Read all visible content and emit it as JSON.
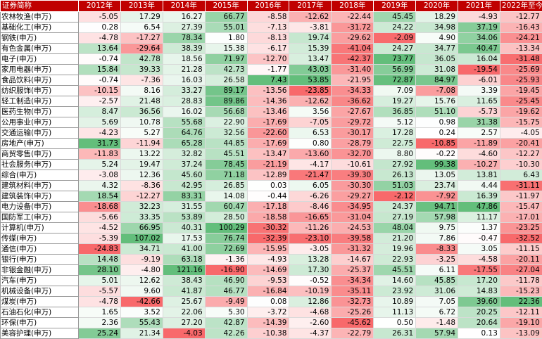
{
  "table": {
    "corner_label": "证券简称",
    "columns": [
      "2012年",
      "2013年",
      "2014年",
      "2015年",
      "2016年",
      "2017年",
      "2018年",
      "2019年",
      "2020年",
      "2021年",
      "2022年至今"
    ],
    "colors": {
      "header_bg": "#c00000",
      "positive_max": "#63be7b",
      "negative_max": "#f8696b",
      "neutral": "#ffffff"
    },
    "rows": [
      {
        "name": "农林牧渔(申万)",
        "values": [
          "-5.05",
          "17.29",
          "16.27",
          "66.77",
          "-8.58",
          "-12.62",
          "-22.44",
          "45.45",
          "18.29",
          "-4.93",
          "-12.77"
        ]
      },
      {
        "name": "基础化工(申万)",
        "values": [
          "0.28",
          "6.54",
          "27.39",
          "55.01",
          "-7.13",
          "-3.81",
          "-31.72",
          "24.22",
          "34.98",
          "37.19",
          "-16.43"
        ]
      },
      {
        "name": "钢铁(申万)",
        "values": [
          "-4.78",
          "-17.27",
          "78.34",
          "1.80",
          "-8.13",
          "19.74",
          "-29.62",
          "-2.09",
          "4.90",
          "34.06",
          "-24.21"
        ]
      },
      {
        "name": "有色金属(申万)",
        "values": [
          "13.64",
          "-29.64",
          "38.39",
          "15.38",
          "-6.17",
          "15.39",
          "-41.04",
          "24.27",
          "34.77",
          "40.47",
          "-13.34"
        ]
      },
      {
        "name": "电子(申万)",
        "values": [
          "-0.74",
          "42.78",
          "18.56",
          "71.97",
          "-12.70",
          "13.47",
          "-42.37",
          "73.77",
          "36.05",
          "16.04",
          "-31.48"
        ]
      },
      {
        "name": "家用电器(申万)",
        "values": [
          "15.84",
          "39.33",
          "21.28",
          "42.73",
          "-1.77",
          "43.03",
          "-31.40",
          "56.99",
          "31.08",
          "-19.54",
          "-25.69"
        ]
      },
      {
        "name": "食品饮料(申万)",
        "values": [
          "-0.74",
          "-7.36",
          "16.03",
          "26.58",
          "7.43",
          "53.85",
          "-21.95",
          "72.87",
          "84.97",
          "-6.01",
          "-25.93"
        ]
      },
      {
        "name": "纺织服饰(申万)",
        "values": [
          "-10.15",
          "8.16",
          "33.27",
          "89.17",
          "-13.56",
          "-23.85",
          "-34.33",
          "7.09",
          "-7.08",
          "3.39",
          "-19.45"
        ]
      },
      {
        "name": "轻工制造(申万)",
        "values": [
          "-2.57",
          "21.48",
          "28.83",
          "89.86",
          "-14.36",
          "-12.62",
          "-36.62",
          "19.27",
          "15.76",
          "11.65",
          "-25.45"
        ]
      },
      {
        "name": "医药生物(申万)",
        "values": [
          "8.47",
          "36.56",
          "16.02",
          "56.68",
          "-13.46",
          "3.56",
          "-27.67",
          "36.85",
          "51.10",
          "-5.73",
          "-19.62"
        ]
      },
      {
        "name": "公用事业(申万)",
        "values": [
          "5.69",
          "10.78",
          "55.68",
          "22.90",
          "-17.69",
          "-7.05",
          "-29.72",
          "5.12",
          "0.98",
          "31.38",
          "-15.75"
        ]
      },
      {
        "name": "交通运输(申万)",
        "values": [
          "-4.23",
          "5.27",
          "64.76",
          "32.56",
          "-22.60",
          "6.53",
          "-30.17",
          "17.28",
          "0.24",
          "2.57",
          "-4.05"
        ]
      },
      {
        "name": "房地产(申万)",
        "values": [
          "31.73",
          "-11.94",
          "65.28",
          "44.85",
          "-17.69",
          "0.80",
          "-28.79",
          "22.75",
          "-10.85",
          "-11.89",
          "-20.41"
        ]
      },
      {
        "name": "商贸零售(申万)",
        "values": [
          "-11.83",
          "13.22",
          "32.82",
          "45.51",
          "-13.47",
          "-13.60",
          "-32.70",
          "8.80",
          "-0.22",
          "-4.60",
          "-12.27"
        ]
      },
      {
        "name": "社会服务(申万)",
        "values": [
          "5.24",
          "19.47",
          "37.24",
          "78.45",
          "-21.19",
          "-4.17",
          "-10.61",
          "27.92",
          "99.38",
          "-10.27",
          "-10.30"
        ]
      },
      {
        "name": "综合(申万)",
        "values": [
          "-3.08",
          "12.36",
          "45.60",
          "71.18",
          "-12.89",
          "-21.47",
          "-39.30",
          "26.13",
          "13.05",
          "13.81",
          "6.43"
        ]
      },
      {
        "name": "建筑材料(申万)",
        "values": [
          "4.32",
          "-8.36",
          "42.95",
          "26.85",
          "0.03",
          "6.05",
          "-30.30",
          "51.03",
          "23.74",
          "4.44",
          "-31.11"
        ]
      },
      {
        "name": "建筑装饰(申万)",
        "values": [
          "18.54",
          "-12.27",
          "83.31",
          "14.08",
          "-0.44",
          "-6.26",
          "-29.27",
          "-2.12",
          "-7.92",
          "16.39",
          "-11.97"
        ]
      },
      {
        "name": "电力设备(申万)",
        "values": [
          "-18.68",
          "32.23",
          "31.55",
          "60.47",
          "-17.18",
          "-8.46",
          "-34.95",
          "24.37",
          "94.71",
          "47.86",
          "-15.47"
        ]
      },
      {
        "name": "国防军工(申万)",
        "values": [
          "-5.66",
          "33.35",
          "53.89",
          "28.50",
          "-18.58",
          "-16.65",
          "-31.04",
          "27.19",
          "57.98",
          "11.17",
          "-17.01"
        ]
      },
      {
        "name": "计算机(申万)",
        "values": [
          "-4.52",
          "66.95",
          "40.31",
          "100.29",
          "-30.32",
          "-11.26",
          "-24.53",
          "48.04",
          "9.75",
          "1.37",
          "-23.25"
        ]
      },
      {
        "name": "传媒(申万)",
        "values": [
          "-5.39",
          "107.02",
          "17.53",
          "76.74",
          "-32.39",
          "-23.10",
          "-39.58",
          "21.20",
          "7.86",
          "-0.47",
          "-32.52"
        ]
      },
      {
        "name": "通信(申万)",
        "values": [
          "-24.83",
          "34.71",
          "41.00",
          "72.69",
          "-15.95",
          "-3.05",
          "-31.32",
          "19.96",
          "-8.33",
          "3.05",
          "-11.15"
        ]
      },
      {
        "name": "银行(申万)",
        "values": [
          "14.48",
          "-9.19",
          "63.18",
          "-1.36",
          "-4.93",
          "13.28",
          "-14.67",
          "22.93",
          "-3.25",
          "-4.58",
          "-20.11"
        ]
      },
      {
        "name": "非银金融(申万)",
        "values": [
          "28.10",
          "-4.80",
          "121.16",
          "-16.90",
          "-14.69",
          "17.30",
          "-25.37",
          "45.51",
          "6.11",
          "-17.55",
          "-27.04"
        ]
      },
      {
        "name": "汽车(申万)",
        "values": [
          "5.01",
          "12.62",
          "38.43",
          "46.90",
          "-9.53",
          "-0.52",
          "-34.34",
          "14.60",
          "45.85",
          "17.20",
          "-11.78"
        ]
      },
      {
        "name": "机械设备(申万)",
        "values": [
          "-5.57",
          "9.60",
          "41.87",
          "46.77",
          "-16.84",
          "-10.19",
          "-35.11",
          "23.92",
          "31.06",
          "14.83",
          "-15.23"
        ]
      },
      {
        "name": "煤炭(申万)",
        "values": [
          "-4.78",
          "-42.66",
          "25.67",
          "-9.49",
          "0.08",
          "12.86",
          "-32.73",
          "10.89",
          "7.05",
          "39.60",
          "22.36"
        ]
      },
      {
        "name": "石油石化(申万)",
        "values": [
          "1.65",
          "3.52",
          "22.06",
          "5.30",
          "-3.72",
          "-4.68",
          "-25.26",
          "11.13",
          "6.72",
          "20.25",
          "-12.11"
        ]
      },
      {
        "name": "环保(申万)",
        "values": [
          "2.36",
          "55.43",
          "27.20",
          "42.87",
          "-14.39",
          "-2.60",
          "-45.62",
          "0.50",
          "-1.48",
          "20.64",
          "-19.10"
        ]
      },
      {
        "name": "美容护理(申万)",
        "values": [
          "25.24",
          "21.34",
          "-4.03",
          "42.26",
          "-10.38",
          "-4.37",
          "-22.79",
          "26.31",
          "57.94",
          "0.13",
          "-13.09"
        ]
      }
    ]
  }
}
